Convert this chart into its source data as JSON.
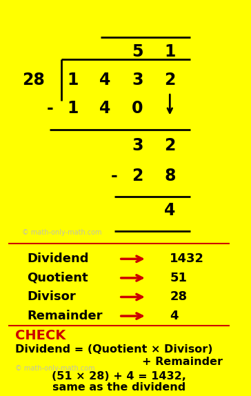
{
  "bg_color": "#FFFF00",
  "text_color": "#000000",
  "red_color": "#CC0000",
  "gray_color": "#BBBBBB",
  "fig_width": 3.64,
  "fig_height": 5.74,
  "divisor": "28",
  "dividend_digits": [
    "1",
    "4",
    "3",
    "2"
  ],
  "quotient_digits": [
    "5",
    "1"
  ],
  "watermark": "© math-only-math.com",
  "label_items": [
    {
      "label": "Dividend",
      "value": "1432"
    },
    {
      "label": "Quotient",
      "value": "51"
    },
    {
      "label": "Divisor",
      "value": "28"
    },
    {
      "label": "Remainder",
      "value": "4"
    }
  ],
  "check_title": "CHECK",
  "check_line1": "Dividend = (Quotient × Divisor)",
  "check_line2": "                    + Remainder",
  "check_line3": "(51 × 28) + 4 = 1432,",
  "check_line4": "same as the dividend"
}
